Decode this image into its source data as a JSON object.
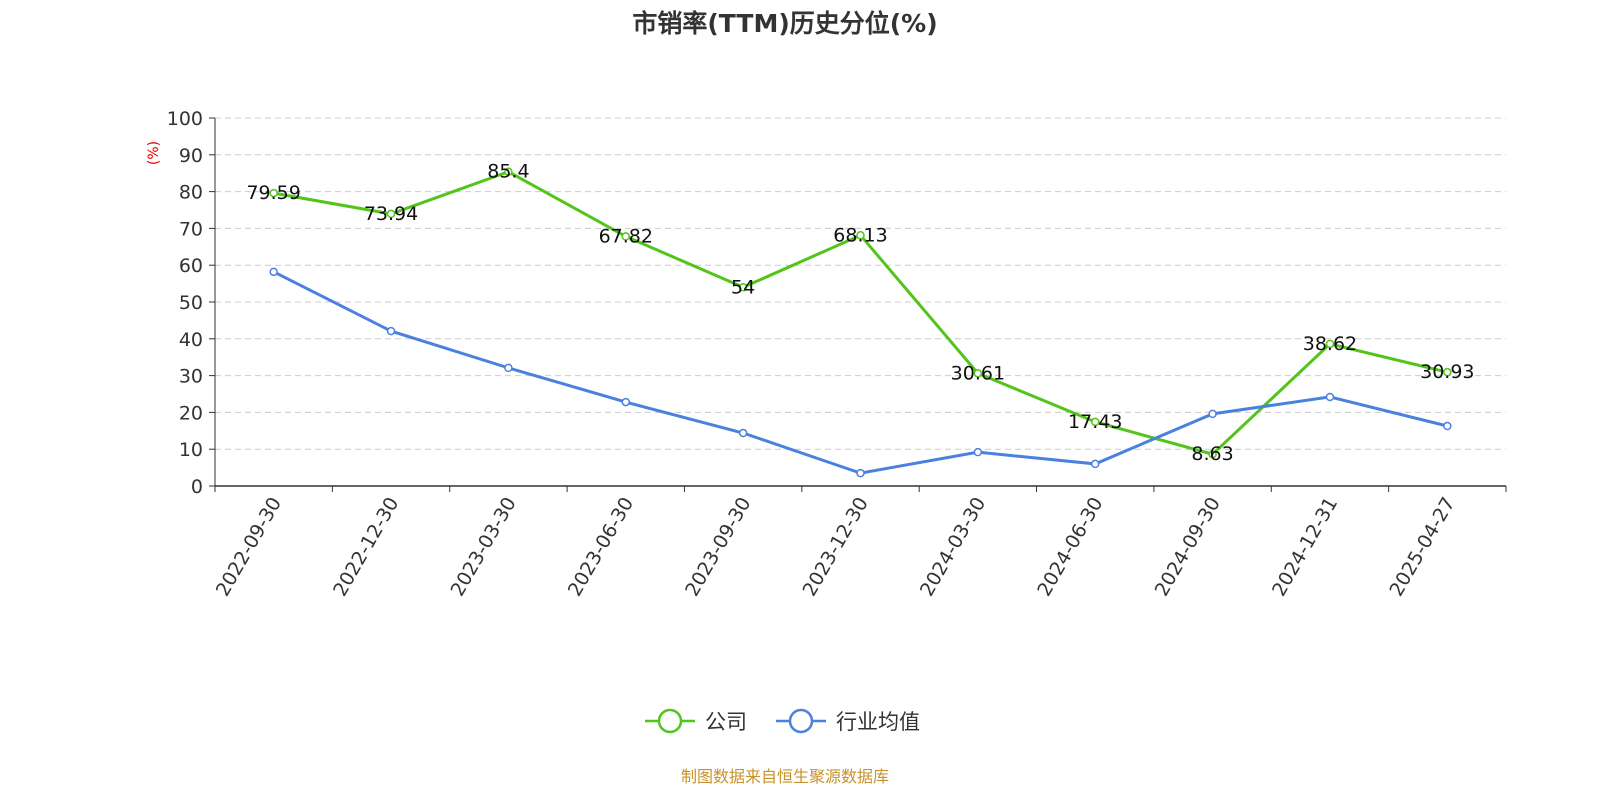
{
  "chart_data": {
    "type": "line",
    "title": "市销率(TTM)历史分位(%)",
    "ylabel": "(%)",
    "xlabel": "",
    "ylim": [
      0,
      100
    ],
    "yticks": [
      0,
      10,
      20,
      30,
      40,
      50,
      60,
      70,
      80,
      90,
      100
    ],
    "grid": true,
    "legend_position": "bottom",
    "categories": [
      "2022-09-30",
      "2022-12-30",
      "2023-03-30",
      "2023-06-30",
      "2023-09-30",
      "2023-12-30",
      "2024-03-30",
      "2024-06-30",
      "2024-09-30",
      "2024-12-31",
      "2025-04-27"
    ],
    "series": [
      {
        "name": "公司",
        "color": "#52c41a",
        "labels": true,
        "values": [
          79.59,
          73.94,
          85.4,
          67.82,
          54,
          68.13,
          30.61,
          17.43,
          8.63,
          38.62,
          30.93
        ]
      },
      {
        "name": "行业均值",
        "color": "#4a80e0",
        "labels": false,
        "values": [
          58.2,
          42.1,
          32.1,
          22.8,
          14.4,
          3.5,
          9.2,
          6.0,
          19.6,
          24.2,
          16.3
        ]
      }
    ],
    "source": "制图数据来自恒生聚源数据库"
  }
}
